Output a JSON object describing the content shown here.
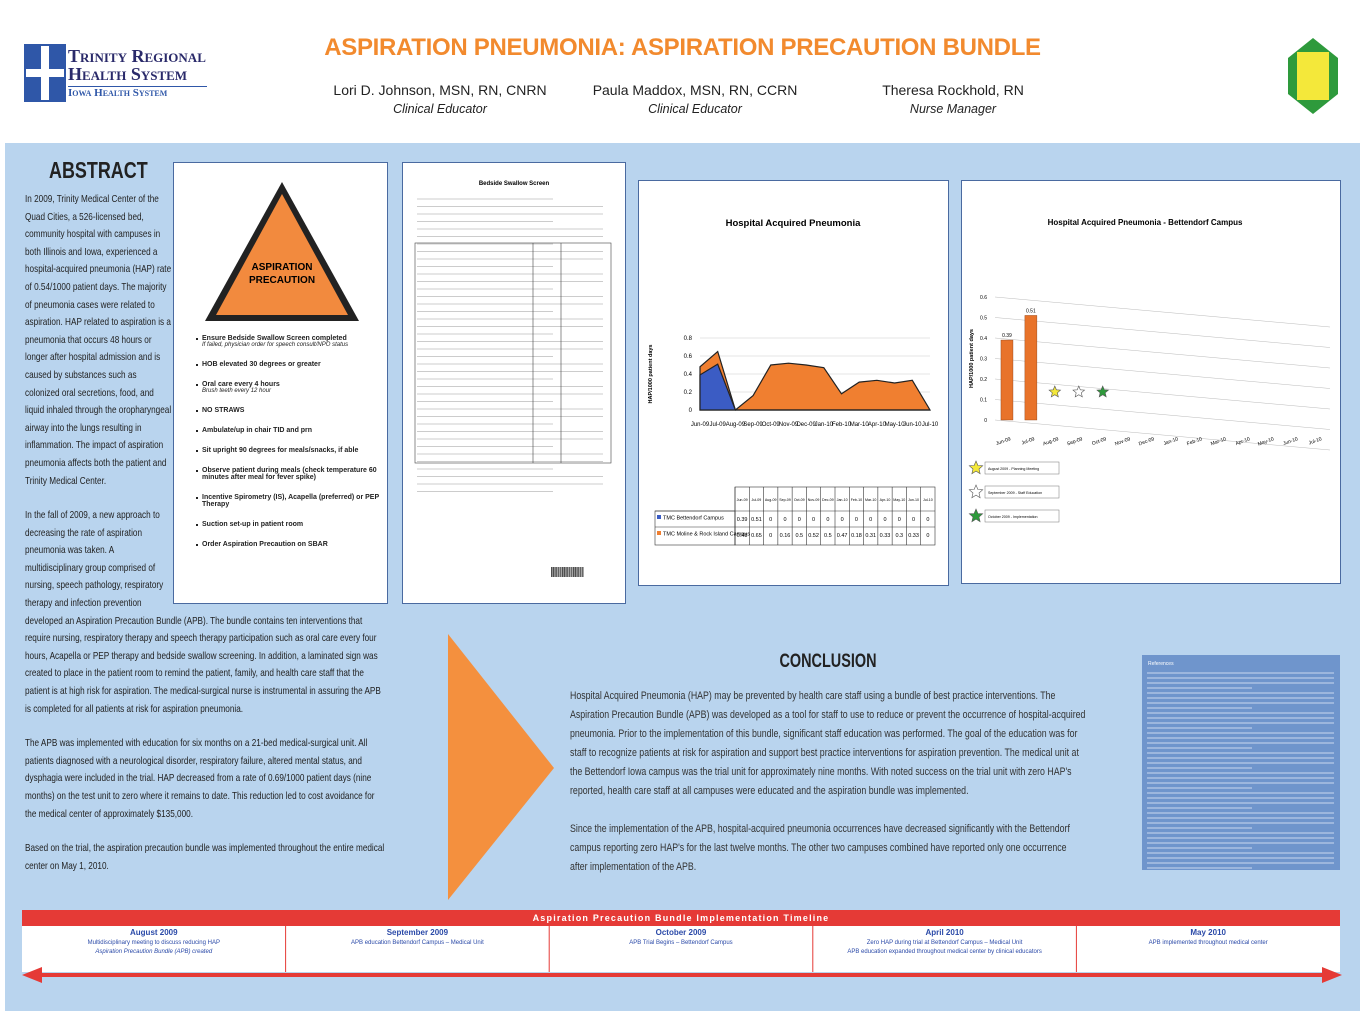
{
  "header": {
    "title": "ASPIRATION PNEUMONIA: ASPIRATION PRECAUTION BUNDLE",
    "logo": {
      "line1": "Trinity Regional",
      "line2": "Health System",
      "line3": "Iowa Health System"
    },
    "authors": [
      {
        "name": "Lori D. Johnson, MSN, RN, CNRN",
        "role": "Clinical Educator"
      },
      {
        "name": "Paula Maddox, MSN, RN, CCRN",
        "role": "Clinical Educator"
      },
      {
        "name": "Theresa Rockhold, RN",
        "role": "Nurse Manager"
      }
    ]
  },
  "abstract": {
    "heading": "ABSTRACT",
    "paragraphs": [
      "In 2009, Trinity Medical Center of the Quad Cities, a 526-licensed bed, community hospital with campuses in both Illinois and Iowa, experienced a hospital-acquired pneumonia (HAP) rate of 0.54/1000 patient days. The majority of pneumonia cases were related to aspiration. HAP related to aspiration is a pneumonia that occurs 48 hours or longer after hospital admission and is caused by substances such as colonized oral secretions, food, and liquid inhaled through the oropharyngeal airway into the lungs resulting in inflammation. The impact of aspiration pneumonia affects both the patient and Trinity Medical Center.",
      "In the fall of 2009, a new approach to decreasing the rate of aspiration pneumonia was taken. A multidisciplinary group comprised of nursing, speech pathology, respiratory therapy and infection prevention developed an Aspiration Precaution Bundle (APB). The bundle contains ten interventions that require nursing, respiratory therapy and speech therapy participation such as oral care every four hours, Acapella or PEP therapy and bedside swallow screening. In addition, a laminated sign was created to place in the patient room to remind the patient, family, and health care staff that the patient is at high risk for aspiration. The medical-surgical nurse is instrumental in assuring the APB is completed for all patients at risk for aspiration pneumonia.",
      "The APB was implemented with education for six months on a 21-bed medical-surgical unit. All patients diagnosed with a neurological disorder, respiratory failure, altered mental status, and dysphagia were included in the trial. HAP decreased from a rate of 0.69/1000 patient days (nine months) on the test unit to zero where it remains to date. This reduction led to cost avoidance for the medical center of approximately $135,000.",
      "Based on the trial, the aspiration precaution bundle was implemented throughout the entire medical center on May 1, 2010."
    ]
  },
  "precaution_card": {
    "sign": "ASPIRATION PRECAUTION",
    "items": [
      {
        "text": "Ensure Bedside Swallow Screen completed",
        "note": "If failed, physician order for speech consult/NPO status"
      },
      {
        "text": "HOB elevated 30 degrees or greater"
      },
      {
        "text": "Oral care every 4 hours",
        "note": "Brush teeth every 12 hour"
      },
      {
        "text": "NO STRAWS"
      },
      {
        "text": "Ambulate/up in chair TID and prn"
      },
      {
        "text": "Sit upright 90 degrees for meals/snacks, if able"
      },
      {
        "text": "Observe patient during meals (check temperature 60 minutes after meal for fever spike)"
      },
      {
        "text": "Incentive Spirometry (IS), Acapella (preferred) or PEP Therapy"
      },
      {
        "text": "Suction set-up in patient room"
      },
      {
        "text": "Order Aspiration Precaution on SBAR"
      }
    ]
  },
  "swallow_screen": {
    "title": "Bedside Swallow Screen"
  },
  "chart_data": [
    {
      "type": "area",
      "title": "Hospital Acquired Pneumonia",
      "y_label": "HAP/1000 patient days",
      "categories": [
        "Jun-09",
        "Jul-09",
        "Aug-09",
        "Sep-09",
        "Oct-09",
        "Nov-09",
        "Dec-09",
        "Jan-10",
        "Feb-10",
        "Mar-10",
        "Apr-10",
        "May-10",
        "Jun-10",
        "Jul-10"
      ],
      "series": [
        {
          "name": "TMC Bettendorf Campus",
          "color": "#3b5cc4",
          "values": [
            0.39,
            0.51,
            0,
            0,
            0,
            0,
            0,
            0,
            0,
            0,
            0,
            0,
            0,
            0
          ]
        },
        {
          "name": "TMC Moline & Rock Island Campus",
          "color": "#f07f30",
          "values": [
            0.48,
            0.65,
            0,
            0.16,
            0.5,
            0.52,
            0.5,
            0.47,
            0.18,
            0.31,
            0.33,
            0.3,
            0.33,
            0
          ]
        }
      ],
      "ylim": [
        0,
        0.8
      ],
      "yticks": [
        0,
        0.2,
        0.4,
        0.6,
        0.8
      ],
      "grid": true,
      "data_table": true
    },
    {
      "type": "bar",
      "title": "Hospital Acquired Pneumonia - Bettendorf Campus",
      "y_label": "HAP/1000 patient days",
      "categories": [
        "Jun-09",
        "Jul-09",
        "Aug-09",
        "Sep-09",
        "Oct-09",
        "Nov-09",
        "Dec-09",
        "Jan-10",
        "Feb-10",
        "Mar-10",
        "Apr-10",
        "May-10",
        "Jun-10",
        "Jul-10"
      ],
      "values": [
        0.39,
        0.51,
        0,
        0,
        0,
        0,
        0,
        0,
        0,
        0,
        0,
        0,
        0,
        0
      ],
      "color": "#e8732a",
      "ylim": [
        0,
        0.6
      ],
      "yticks": [
        0,
        0.1,
        0.2,
        0.3,
        0.4,
        0.5,
        0.6
      ],
      "grid": true,
      "annotations": [
        {
          "x": "Aug-09",
          "text": "August 2009 - Planning Meeting",
          "color": "#f4e83a"
        },
        {
          "x": "Sep-09",
          "text": "September 2009 - Staff Education",
          "color": "#ffffff"
        },
        {
          "x": "Oct-09",
          "text": "October 2009 - Implementation",
          "color": "#2e9a3c"
        }
      ]
    }
  ],
  "conclusion": {
    "heading": "CONCLUSION",
    "paragraphs": [
      "Hospital Acquired Pneumonia (HAP) may be prevented by health care staff using a bundle of best practice interventions. The Aspiration Precaution Bundle (APB) was developed as a tool for staff to use to reduce or prevent the occurrence of hospital-acquired pneumonia. Prior to the implementation of this bundle, significant staff education was performed. The goal of the education was for staff to recognize patients at risk for aspiration and support best practice interventions for aspiration prevention. The medical unit at the Bettendorf Iowa campus was the trial unit for approximately nine months. With noted success on the trial unit with zero HAP's reported, health care staff at all campuses were educated and the aspiration bundle was implemented.",
      "Since the implementation of the APB, hospital-acquired pneumonia occurrences have decreased significantly with the Bettendorf campus reporting zero HAP's for the last twelve months. The other two campuses combined have reported only one occurrence after implementation of the APB."
    ]
  },
  "references": {
    "heading": "References"
  },
  "timeline": {
    "title": "Aspiration Precaution Bundle Implementation Timeline",
    "entries": [
      {
        "date": "August 2009",
        "lines": [
          "Multidisciplinary meeting to discuss reducing HAP",
          "Aspiration Precaution Bundle (APB) created"
        ]
      },
      {
        "date": "September 2009",
        "lines": [
          "APB education  Bettendorf Campus – Medical Unit"
        ]
      },
      {
        "date": "October 2009",
        "lines": [
          "APB Trial Begins – Bettendorf Campus"
        ]
      },
      {
        "date": "April 2010",
        "lines": [
          "Zero HAP during trial at Bettendorf Campus – Medical Unit",
          "APB education expanded throughout medical center by clinical educators"
        ]
      },
      {
        "date": "May 2010",
        "lines": [
          "APB implemented throughout medical center"
        ]
      }
    ]
  }
}
